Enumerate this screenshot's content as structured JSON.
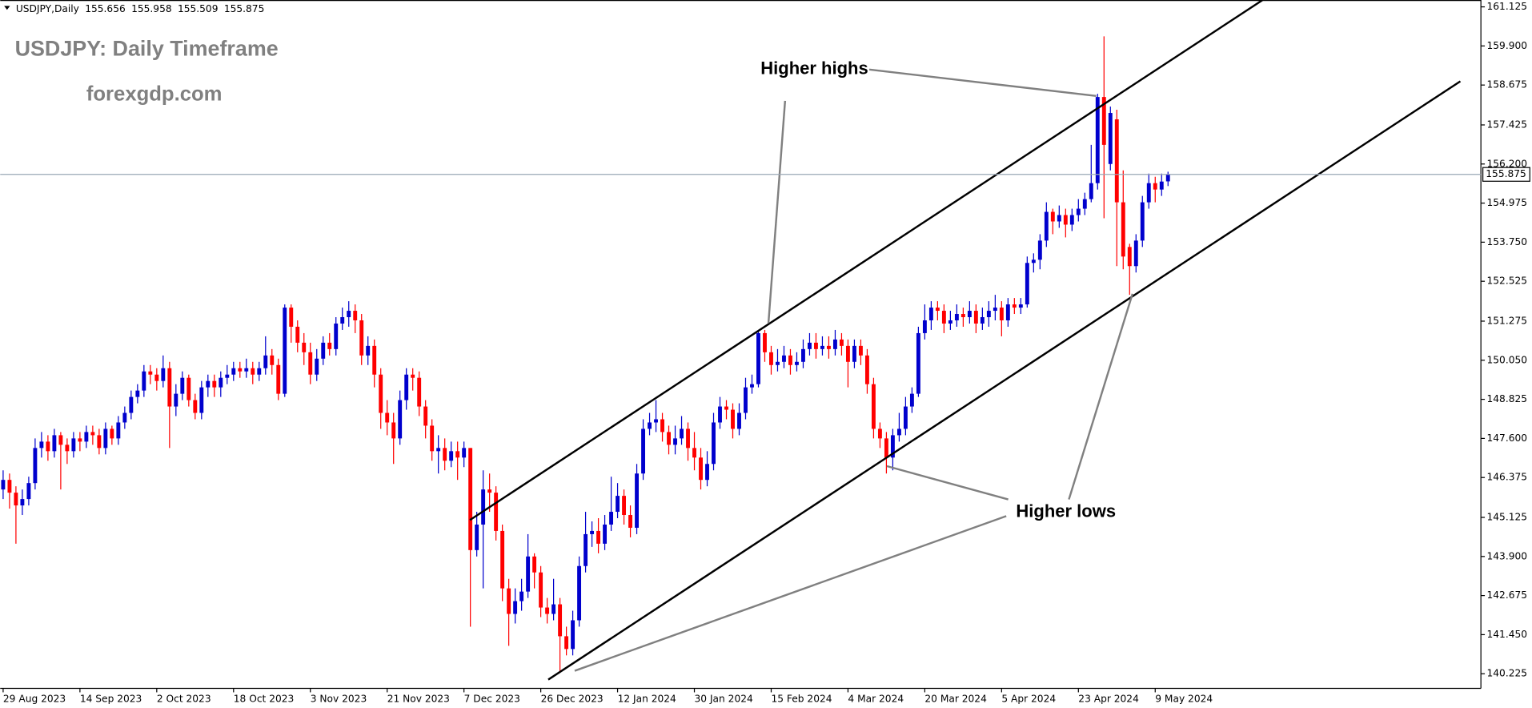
{
  "chart_data": {
    "type": "candlestick",
    "symbol": "USDJPY,Daily",
    "title": "USDJPY: Daily Timeframe",
    "subtitle": "forexgdp.com",
    "annotations": [
      "Higher highs",
      "Higher lows"
    ],
    "up_color": "#0000cd",
    "down_color": "#ff0000",
    "grid": false,
    "ylim": [
      139.765,
      161.34
    ],
    "yticks": [
      161.125,
      {
        "value": 159.9,
        "label": "159.900"
      },
      158.675,
      157.425,
      {
        "value": 156.2,
        "label": "156.200"
      },
      154.975,
      {
        "value": 153.75,
        "label": "153.750"
      },
      152.525,
      151.275,
      {
        "value": 150.05,
        "label": "150.050"
      },
      148.825,
      {
        "value": 147.6,
        "label": "147.600"
      },
      146.375,
      145.125,
      {
        "value": 143.9,
        "label": "143.900"
      },
      142.675,
      {
        "value": 141.45,
        "label": "141.450"
      },
      140.225
    ],
    "categories": [
      "29 Aug 2023",
      null,
      null,
      null,
      null,
      null,
      null,
      null,
      null,
      null,
      null,
      null,
      "14 Sep 2023",
      null,
      null,
      null,
      null,
      null,
      null,
      null,
      null,
      null,
      null,
      null,
      "2 Oct 2023",
      null,
      null,
      null,
      null,
      null,
      null,
      null,
      null,
      null,
      null,
      null,
      "18 Oct 2023",
      null,
      null,
      null,
      null,
      null,
      null,
      null,
      null,
      null,
      null,
      null,
      "3 Nov 2023",
      null,
      null,
      null,
      null,
      null,
      null,
      null,
      null,
      null,
      null,
      null,
      "21 Nov 2023",
      null,
      null,
      null,
      null,
      null,
      null,
      null,
      null,
      null,
      null,
      null,
      "7 Dec 2023",
      null,
      null,
      null,
      null,
      null,
      null,
      null,
      null,
      null,
      null,
      null,
      "26 Dec 2023",
      null,
      null,
      null,
      null,
      null,
      null,
      null,
      null,
      null,
      null,
      null,
      "12 Jan 2024",
      null,
      null,
      null,
      null,
      null,
      null,
      null,
      null,
      null,
      null,
      null,
      "30 Jan 2024",
      null,
      null,
      null,
      null,
      null,
      null,
      null,
      null,
      null,
      null,
      null,
      "15 Feb 2024",
      null,
      null,
      null,
      null,
      null,
      null,
      null,
      null,
      null,
      null,
      null,
      "4 Mar 2024",
      null,
      null,
      null,
      null,
      null,
      null,
      null,
      null,
      null,
      null,
      null,
      "20 Mar 2024",
      null,
      null,
      null,
      null,
      null,
      null,
      null,
      null,
      null,
      null,
      null,
      "5 Apr 2024",
      null,
      null,
      null,
      null,
      null,
      null,
      null,
      null,
      null,
      null,
      null,
      "23 Apr 2024",
      null,
      null,
      null,
      null,
      null,
      null,
      null,
      null,
      null,
      null,
      null,
      "9 May 2024",
      null,
      null
    ],
    "open": [
      146.0,
      146.3,
      145.9,
      145.5,
      145.7,
      146.2,
      147.3,
      147.5,
      147.2,
      147.7,
      147.4,
      147.2,
      147.6,
      147.5,
      147.8,
      147.7,
      147.3,
      147.9,
      147.6,
      148.1,
      148.4,
      148.9,
      149.1,
      149.7,
      149.6,
      149.4,
      149.8,
      148.6,
      149.0,
      149.5,
      148.8,
      148.4,
      149.2,
      149.4,
      149.2,
      149.5,
      149.6,
      149.8,
      149.7,
      149.8,
      149.6,
      149.8,
      150.2,
      149.9,
      149.0,
      151.7,
      151.1,
      150.6,
      150.3,
      149.6,
      150.1,
      150.6,
      150.4,
      151.2,
      151.4,
      151.6,
      151.3,
      150.2,
      150.5,
      149.6,
      148.4,
      148.1,
      147.6,
      148.8,
      149.6,
      149.5,
      148.6,
      148.0,
      147.2,
      147.3,
      146.9,
      147.2,
      147.0,
      147.3,
      144.1,
      144.9,
      146.0,
      145.9,
      144.7,
      142.9,
      142.1,
      142.5,
      142.8,
      143.9,
      143.4,
      142.3,
      142.1,
      142.4,
      141.4,
      141.0,
      141.9,
      143.6,
      144.6,
      144.7,
      144.3,
      144.9,
      145.3,
      145.8,
      145.2,
      144.8,
      146.5,
      147.9,
      148.1,
      148.2,
      147.8,
      147.4,
      147.6,
      147.9,
      147.3,
      147.0,
      146.3,
      146.8,
      148.1,
      148.6,
      148.5,
      147.9,
      148.4,
      149.2,
      149.3,
      150.9,
      150.3,
      149.9,
      150.0,
      150.2,
      149.9,
      150.0,
      150.4,
      150.6,
      150.4,
      150.5,
      150.4,
      150.7,
      150.5,
      150.0,
      150.5,
      150.2,
      149.3,
      147.9,
      147.6,
      147.0,
      147.7,
      147.9,
      148.6,
      149.0,
      150.9,
      151.3,
      151.7,
      151.6,
      151.2,
      151.3,
      151.5,
      151.4,
      151.6,
      151.2,
      151.4,
      151.6,
      151.7,
      151.3,
      151.8,
      151.7,
      151.8,
      153.1,
      153.2,
      153.8,
      154.7,
      154.4,
      154.6,
      154.3,
      154.6,
      154.8,
      155.1,
      155.6,
      158.3,
      156.2,
      157.6,
      155.0,
      153.6,
      153.0,
      153.8,
      155.0,
      155.6,
      155.4,
      155.656
    ],
    "high": [
      146.6,
      146.5,
      146.1,
      146.0,
      146.4,
      147.6,
      147.8,
      147.7,
      147.9,
      147.8,
      147.6,
      147.8,
      147.8,
      148.0,
      148.0,
      147.9,
      148.1,
      148.0,
      148.3,
      148.6,
      149.1,
      149.3,
      149.9,
      149.9,
      149.8,
      150.2,
      150.0,
      149.3,
      149.7,
      149.6,
      149.0,
      149.4,
      149.6,
      149.6,
      149.7,
      149.9,
      150.0,
      150.0,
      150.1,
      150.0,
      150.0,
      150.8,
      150.4,
      150.1,
      151.8,
      151.8,
      151.3,
      150.9,
      150.6,
      150.4,
      150.8,
      150.9,
      151.4,
      151.7,
      151.9,
      151.8,
      151.5,
      150.8,
      150.7,
      149.8,
      148.8,
      148.4,
      149.1,
      149.8,
      149.8,
      149.7,
      148.8,
      148.2,
      147.7,
      147.6,
      147.5,
      147.5,
      147.5,
      147.3,
      145.3,
      146.6,
      146.5,
      146.1,
      144.9,
      143.2,
      142.9,
      143.2,
      144.6,
      144.0,
      143.6,
      142.6,
      143.2,
      142.6,
      141.7,
      142.2,
      143.9,
      145.3,
      145.0,
      145.1,
      145.2,
      146.4,
      146.2,
      146.0,
      145.5,
      146.8,
      148.2,
      148.4,
      148.8,
      148.4,
      148.0,
      148.0,
      148.3,
      148.1,
      147.8,
      147.3,
      147.2,
      148.4,
      148.9,
      148.8,
      148.7,
      148.7,
      149.5,
      149.6,
      151.0,
      151.0,
      150.5,
      150.4,
      150.5,
      150.4,
      150.3,
      150.7,
      150.9,
      150.9,
      150.8,
      150.8,
      151.0,
      150.9,
      150.7,
      150.7,
      150.7,
      150.4,
      149.5,
      148.1,
      147.8,
      147.9,
      148.4,
      148.9,
      149.2,
      151.1,
      151.8,
      151.9,
      151.9,
      151.8,
      151.6,
      151.8,
      151.7,
      151.9,
      151.8,
      151.7,
      151.9,
      152.1,
      151.9,
      152.0,
      152.0,
      152.0,
      153.3,
      153.4,
      154.0,
      155.0,
      154.8,
      154.9,
      154.8,
      154.8,
      155.1,
      155.3,
      156.8,
      158.4,
      160.2,
      158.0,
      157.9,
      156.0,
      153.7,
      154.0,
      155.2,
      155.9,
      155.8,
      155.9,
      155.958
    ],
    "low": [
      145.7,
      145.4,
      144.3,
      145.2,
      145.5,
      146.0,
      147.0,
      146.9,
      147.0,
      146.0,
      146.8,
      147.0,
      147.2,
      147.3,
      147.4,
      147.1,
      147.1,
      147.4,
      147.4,
      147.9,
      148.2,
      148.7,
      148.9,
      149.3,
      149.1,
      149.2,
      147.3,
      148.3,
      148.8,
      148.6,
      148.2,
      148.2,
      148.9,
      148.9,
      148.9,
      149.3,
      149.4,
      149.5,
      149.5,
      149.3,
      149.4,
      149.6,
      149.6,
      148.8,
      148.9,
      150.6,
      150.3,
      149.9,
      149.3,
      149.4,
      149.9,
      150.2,
      150.2,
      151.0,
      151.1,
      150.9,
      149.9,
      149.9,
      149.2,
      147.9,
      147.7,
      146.8,
      147.4,
      148.5,
      149.1,
      148.3,
      147.6,
      146.9,
      146.5,
      146.6,
      146.7,
      146.3,
      146.7,
      141.7,
      143.9,
      142.9,
      145.3,
      144.4,
      142.5,
      141.1,
      141.8,
      142.2,
      142.6,
      142.9,
      142.0,
      141.8,
      141.9,
      140.3,
      140.8,
      140.8,
      141.7,
      143.4,
      144.2,
      144.0,
      144.1,
      144.7,
      145.1,
      144.9,
      144.5,
      144.6,
      146.3,
      147.7,
      147.8,
      147.5,
      147.1,
      147.1,
      147.4,
      146.9,
      146.6,
      146.0,
      146.1,
      146.6,
      147.9,
      148.2,
      147.6,
      147.7,
      148.2,
      149.0,
      149.2,
      150.0,
      149.6,
      149.7,
      149.8,
      149.6,
      149.7,
      149.8,
      150.2,
      150.1,
      150.2,
      150.1,
      150.2,
      150.2,
      149.2,
      149.8,
      149.9,
      149.0,
      147.6,
      147.3,
      146.5,
      146.6,
      147.5,
      147.7,
      148.4,
      148.9,
      150.7,
      151.0,
      151.3,
      150.9,
      151.0,
      151.1,
      151.1,
      151.2,
      150.9,
      151.0,
      151.1,
      151.3,
      150.8,
      151.1,
      151.5,
      151.5,
      151.7,
      152.8,
      152.9,
      153.6,
      154.0,
      154.2,
      153.9,
      154.1,
      154.4,
      154.6,
      155.0,
      155.4,
      154.5,
      156.0,
      153.0,
      152.9,
      152.1,
      152.8,
      153.6,
      154.8,
      155.0,
      155.2,
      155.509
    ],
    "close": [
      146.3,
      145.9,
      145.5,
      145.7,
      146.2,
      147.3,
      147.5,
      147.2,
      147.7,
      147.4,
      147.2,
      147.6,
      147.5,
      147.8,
      147.7,
      147.3,
      147.9,
      147.6,
      148.1,
      148.4,
      148.9,
      149.1,
      149.7,
      149.6,
      149.4,
      149.8,
      148.6,
      149.0,
      149.5,
      148.8,
      148.4,
      149.2,
      149.4,
      149.2,
      149.5,
      149.6,
      149.8,
      149.7,
      149.8,
      149.6,
      149.8,
      150.2,
      149.9,
      149.0,
      151.7,
      151.1,
      150.6,
      150.3,
      149.6,
      150.1,
      150.6,
      150.4,
      151.2,
      151.4,
      151.6,
      151.3,
      150.2,
      150.5,
      149.6,
      148.4,
      148.1,
      147.6,
      148.8,
      149.6,
      149.5,
      148.6,
      148.0,
      147.2,
      147.3,
      146.9,
      147.2,
      147.0,
      147.3,
      144.1,
      144.9,
      146.0,
      145.9,
      144.7,
      142.9,
      142.1,
      142.5,
      142.8,
      143.9,
      143.4,
      142.3,
      142.1,
      142.4,
      141.4,
      141.0,
      141.9,
      143.6,
      144.6,
      144.7,
      144.3,
      144.9,
      145.3,
      145.8,
      145.2,
      144.8,
      146.5,
      147.9,
      148.1,
      148.2,
      147.8,
      147.4,
      147.6,
      147.9,
      147.3,
      147.0,
      146.3,
      146.8,
      148.1,
      148.6,
      148.5,
      147.9,
      148.4,
      149.2,
      149.3,
      150.9,
      150.3,
      149.9,
      150.0,
      150.2,
      149.9,
      150.0,
      150.4,
      150.6,
      150.4,
      150.5,
      150.4,
      150.7,
      150.5,
      150.0,
      150.5,
      150.2,
      149.3,
      147.9,
      147.6,
      147.0,
      147.7,
      147.9,
      148.6,
      149.0,
      150.9,
      151.3,
      151.7,
      151.6,
      151.2,
      151.3,
      151.5,
      151.4,
      151.6,
      151.2,
      151.4,
      151.6,
      151.7,
      151.3,
      151.8,
      151.7,
      151.8,
      153.1,
      153.2,
      153.8,
      154.7,
      154.4,
      154.6,
      154.3,
      154.6,
      154.8,
      155.1,
      155.6,
      158.3,
      156.8,
      157.8,
      155.0,
      153.3,
      153.0,
      153.8,
      155.0,
      155.6,
      155.4,
      155.65,
      155.875
    ]
  }
}
